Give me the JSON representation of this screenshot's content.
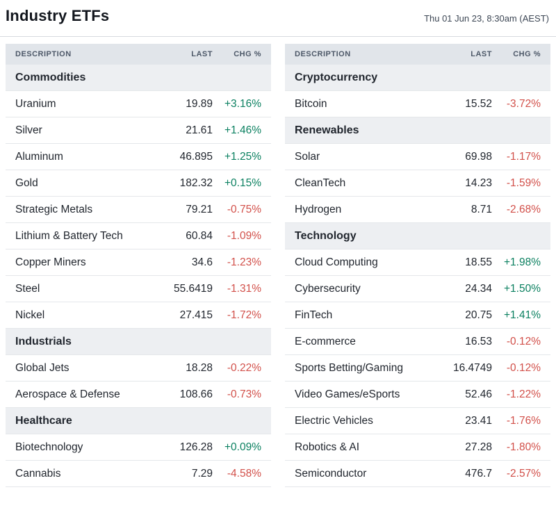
{
  "header": {
    "title": "Industry ETFs",
    "timestamp": "Thu 01 Jun 23, 8:30am (AEST)"
  },
  "columns": {
    "description": "DESCRIPTION",
    "last": "LAST",
    "chg": "CHG %"
  },
  "colors": {
    "positive": "#0b8060",
    "negative": "#d2504a"
  },
  "tables": [
    {
      "rows": [
        {
          "type": "section",
          "label": "Commodities"
        },
        {
          "type": "data",
          "name": "Uranium",
          "last": "19.89",
          "chg": "+3.16%"
        },
        {
          "type": "data",
          "name": "Silver",
          "last": "21.61",
          "chg": "+1.46%"
        },
        {
          "type": "data",
          "name": "Aluminum",
          "last": "46.895",
          "chg": "+1.25%"
        },
        {
          "type": "data",
          "name": "Gold",
          "last": "182.32",
          "chg": "+0.15%"
        },
        {
          "type": "data",
          "name": "Strategic Metals",
          "last": "79.21",
          "chg": "-0.75%"
        },
        {
          "type": "data",
          "name": "Lithium & Battery Tech",
          "last": "60.84",
          "chg": "-1.09%"
        },
        {
          "type": "data",
          "name": "Copper Miners",
          "last": "34.6",
          "chg": "-1.23%"
        },
        {
          "type": "data",
          "name": "Steel",
          "last": "55.6419",
          "chg": "-1.31%"
        },
        {
          "type": "data",
          "name": "Nickel",
          "last": "27.415",
          "chg": "-1.72%"
        },
        {
          "type": "section",
          "label": "Industrials"
        },
        {
          "type": "data",
          "name": "Global Jets",
          "last": "18.28",
          "chg": "-0.22%"
        },
        {
          "type": "data",
          "name": "Aerospace & Defense",
          "last": "108.66",
          "chg": "-0.73%"
        },
        {
          "type": "section",
          "label": "Healthcare"
        },
        {
          "type": "data",
          "name": "Biotechnology",
          "last": "126.28",
          "chg": "+0.09%"
        },
        {
          "type": "data",
          "name": "Cannabis",
          "last": "7.29",
          "chg": "-4.58%"
        }
      ]
    },
    {
      "rows": [
        {
          "type": "section",
          "label": "Cryptocurrency"
        },
        {
          "type": "data",
          "name": "Bitcoin",
          "last": "15.52",
          "chg": "-3.72%"
        },
        {
          "type": "section",
          "label": "Renewables"
        },
        {
          "type": "data",
          "name": "Solar",
          "last": "69.98",
          "chg": "-1.17%"
        },
        {
          "type": "data",
          "name": "CleanTech",
          "last": "14.23",
          "chg": "-1.59%"
        },
        {
          "type": "data",
          "name": "Hydrogen",
          "last": "8.71",
          "chg": "-2.68%"
        },
        {
          "type": "section",
          "label": "Technology"
        },
        {
          "type": "data",
          "name": "Cloud Computing",
          "last": "18.55",
          "chg": "+1.98%"
        },
        {
          "type": "data",
          "name": "Cybersecurity",
          "last": "24.34",
          "chg": "+1.50%"
        },
        {
          "type": "data",
          "name": "FinTech",
          "last": "20.75",
          "chg": "+1.41%"
        },
        {
          "type": "data",
          "name": "E-commerce",
          "last": "16.53",
          "chg": "-0.12%"
        },
        {
          "type": "data",
          "name": "Sports Betting/Gaming",
          "last": "16.4749",
          "chg": "-0.12%"
        },
        {
          "type": "data",
          "name": "Video Games/eSports",
          "last": "52.46",
          "chg": "-1.22%"
        },
        {
          "type": "data",
          "name": "Electric Vehicles",
          "last": "23.41",
          "chg": "-1.76%"
        },
        {
          "type": "data",
          "name": "Robotics & AI",
          "last": "27.28",
          "chg": "-1.80%"
        },
        {
          "type": "data",
          "name": "Semiconductor",
          "last": "476.7",
          "chg": "-2.57%"
        }
      ]
    }
  ]
}
